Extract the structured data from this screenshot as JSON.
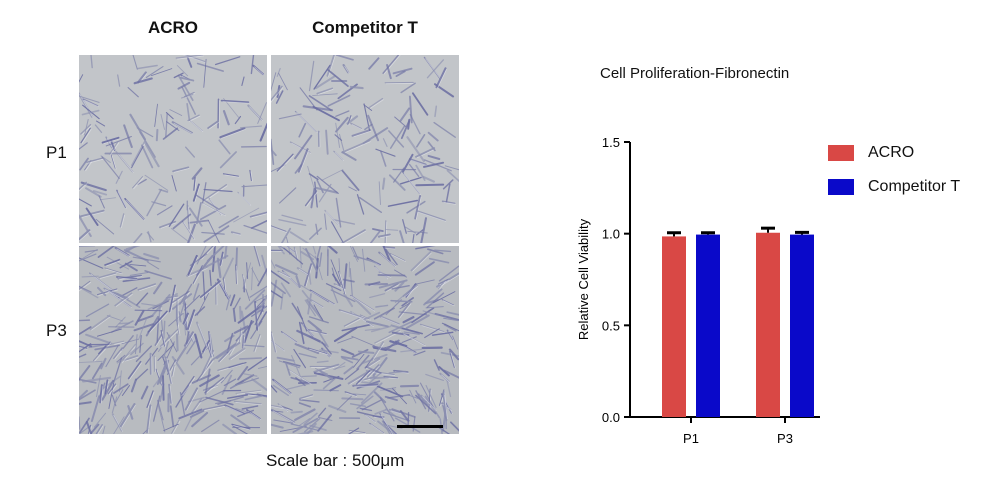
{
  "figure": {
    "column_headers": [
      "ACRO",
      "Competitor T"
    ],
    "row_labels": [
      "P1",
      "P3"
    ],
    "scale_bar_caption": "Scale bar : 500μm"
  },
  "chart_data": {
    "type": "bar",
    "title": "Cell Proliferation-Fibronectin",
    "xlabel": "",
    "ylabel": "Relative Cell Viability",
    "categories": [
      "P1",
      "P3"
    ],
    "series": [
      {
        "name": "ACRO",
        "values": [
          0.985,
          1.005
        ],
        "errors": [
          0.02,
          0.025
        ],
        "color": "#d94845"
      },
      {
        "name": "Competitor T",
        "values": [
          0.995,
          0.995
        ],
        "errors": [
          0.01,
          0.012
        ],
        "color": "#0a09c9"
      }
    ],
    "ylim": [
      0,
      1.5
    ],
    "yticks": [
      0.0,
      0.5,
      1.0,
      1.5
    ],
    "ytick_labels": [
      "0.0",
      "0.5",
      "1.0",
      "1.5"
    ],
    "grid": false,
    "legend_position": "right"
  }
}
